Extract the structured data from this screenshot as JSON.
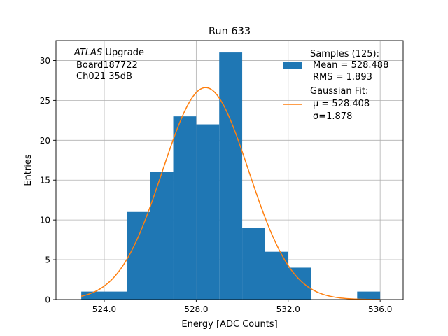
{
  "chart_data": {
    "type": "bar",
    "title": "Run 633",
    "xlabel": "Energy [ADC Counts]",
    "ylabel": "Entries",
    "xlim": [
      521.9,
      537.0
    ],
    "ylim": [
      0,
      32.5
    ],
    "grid": true,
    "x_ticks": [
      524.0,
      528.0,
      532.0,
      536.0
    ],
    "x_tick_labels": [
      "524.0",
      "528.0",
      "532.0",
      "536.0"
    ],
    "y_ticks": [
      0,
      5,
      10,
      15,
      20,
      25,
      30
    ],
    "y_tick_labels": [
      "0",
      "5",
      "10",
      "15",
      "20",
      "25",
      "30"
    ],
    "histogram": {
      "name": "Samples (125):",
      "color": "#1f77b4",
      "bin_edges": [
        523,
        524,
        525,
        526,
        527,
        528,
        529,
        530,
        531,
        532,
        533,
        534,
        535,
        536
      ],
      "counts": [
        1,
        1,
        11,
        16,
        23,
        22,
        31,
        9,
        6,
        4,
        0,
        0,
        1
      ]
    },
    "gaussian_fit": {
      "name": "Gaussian Fit:",
      "color": "#ff7f0e",
      "mu": 528.408,
      "sigma": 1.878,
      "amplitude": 26.6,
      "x_range": [
        523,
        536
      ]
    },
    "legend": {
      "position": "top-right",
      "entries": [
        {
          "label": "Samples (125):",
          "lines": [
            "Mean = 528.488",
            "RMS = 1.893"
          ]
        },
        {
          "label": "Gaussian Fit:",
          "lines": [
            "μ = 528.408",
            "σ=1.878"
          ]
        }
      ]
    },
    "annotation": {
      "position": "top-left",
      "italic": "ATLAS",
      "rest": " Upgrade",
      "lines": [
        "Board187722",
        "Ch021 35dB"
      ]
    }
  }
}
